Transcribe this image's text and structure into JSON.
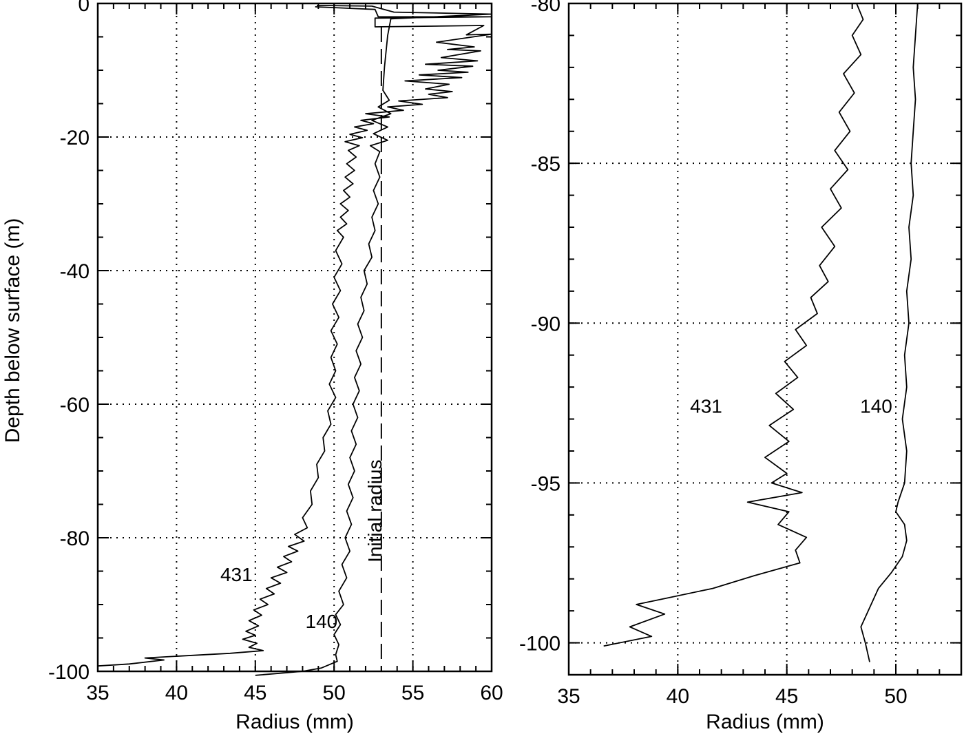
{
  "chart_data": [
    {
      "type": "line",
      "xlabel": "Radius (mm)",
      "ylabel": "Depth below surface (m)",
      "xlim": [
        35,
        60
      ],
      "ylim": [
        -100,
        0
      ],
      "xticks": [
        "35",
        "40",
        "45",
        "50",
        "55",
        "60"
      ],
      "yticks": [
        "0",
        "-20",
        "-40",
        "-60",
        "-80",
        "-100"
      ],
      "grid": true,
      "annotations": [
        {
          "text": "431",
          "x": 43.8,
          "y": -86.5
        },
        {
          "text": "140",
          "x": 49.2,
          "y": -93.5
        },
        {
          "text": "Initial radius",
          "x": 53.0,
          "y": -76.0,
          "rotation": -90
        }
      ],
      "series": [
        {
          "name": "431",
          "points": [
            [
              48.8,
              -0.5
            ],
            [
              52.6,
              -0.9
            ],
            [
              52.8,
              -2.0
            ],
            [
              60.0,
              -2.0
            ],
            [
              52.6,
              -2.2
            ],
            [
              52.6,
              -3.5
            ],
            [
              59.5,
              -3.3
            ],
            [
              58.4,
              -4.7
            ],
            [
              60.0,
              -4.6
            ],
            [
              56.5,
              -5.8
            ],
            [
              58.9,
              -6.5
            ],
            [
              57.2,
              -6.9
            ],
            [
              59.3,
              -7.1
            ],
            [
              56.8,
              -8.1
            ],
            [
              59.1,
              -8.6
            ],
            [
              55.8,
              -9.1
            ],
            [
              58.8,
              -9.4
            ],
            [
              56.6,
              -10.0
            ],
            [
              58.5,
              -10.3
            ],
            [
              55.4,
              -10.7
            ],
            [
              58.1,
              -11.1
            ],
            [
              54.5,
              -11.6
            ],
            [
              57.3,
              -12.1
            ],
            [
              55.8,
              -12.8
            ],
            [
              57.5,
              -13.2
            ],
            [
              56.0,
              -13.6
            ],
            [
              57.2,
              -14.1
            ],
            [
              54.1,
              -14.6
            ],
            [
              55.6,
              -15.1
            ],
            [
              53.4,
              -15.5
            ],
            [
              54.4,
              -16.0
            ],
            [
              52.0,
              -16.5
            ],
            [
              53.5,
              -17.0
            ],
            [
              51.7,
              -17.5
            ],
            [
              52.5,
              -18.0
            ],
            [
              51.3,
              -18.5
            ],
            [
              52.1,
              -19.0
            ],
            [
              51.0,
              -19.6
            ],
            [
              51.8,
              -20.1
            ],
            [
              50.7,
              -20.7
            ],
            [
              51.6,
              -21.3
            ],
            [
              50.9,
              -22.0
            ],
            [
              51.4,
              -23.0
            ],
            [
              50.8,
              -24.0
            ],
            [
              51.3,
              -25.0
            ],
            [
              50.7,
              -26.0
            ],
            [
              51.2,
              -27.0
            ],
            [
              50.6,
              -28.0
            ],
            [
              51.0,
              -29.0
            ],
            [
              50.4,
              -30.0
            ],
            [
              50.9,
              -31.0
            ],
            [
              50.4,
              -32.0
            ],
            [
              50.8,
              -33.0
            ],
            [
              50.2,
              -34.0
            ],
            [
              50.6,
              -35.0
            ],
            [
              50.1,
              -37.0
            ],
            [
              50.5,
              -39.0
            ],
            [
              50.0,
              -41.0
            ],
            [
              50.4,
              -43.0
            ],
            [
              49.9,
              -45.0
            ],
            [
              50.3,
              -47.0
            ],
            [
              49.8,
              -49.0
            ],
            [
              50.2,
              -51.0
            ],
            [
              49.8,
              -53.0
            ],
            [
              50.1,
              -55.0
            ],
            [
              49.7,
              -57.0
            ],
            [
              50.1,
              -59.0
            ],
            [
              49.6,
              -61.0
            ],
            [
              49.8,
              -63.0
            ],
            [
              49.3,
              -65.0
            ],
            [
              49.4,
              -67.0
            ],
            [
              48.9,
              -69.0
            ],
            [
              49.0,
              -71.0
            ],
            [
              48.5,
              -73.0
            ],
            [
              48.6,
              -75.0
            ],
            [
              48.0,
              -77.0
            ],
            [
              48.3,
              -78.5
            ],
            [
              47.5,
              -79.5
            ],
            [
              48.1,
              -80.5
            ],
            [
              47.1,
              -81.3
            ],
            [
              47.7,
              -82.0
            ],
            [
              46.8,
              -82.8
            ],
            [
              47.3,
              -83.6
            ],
            [
              46.4,
              -84.4
            ],
            [
              47.0,
              -85.2
            ],
            [
              46.0,
              -86.0
            ],
            [
              46.6,
              -86.8
            ],
            [
              45.7,
              -87.6
            ],
            [
              46.2,
              -88.4
            ],
            [
              45.3,
              -89.2
            ],
            [
              45.8,
              -90.0
            ],
            [
              44.9,
              -90.8
            ],
            [
              45.4,
              -91.6
            ],
            [
              44.6,
              -92.4
            ],
            [
              45.2,
              -93.2
            ],
            [
              44.4,
              -94.0
            ],
            [
              45.0,
              -94.6
            ],
            [
              44.2,
              -95.2
            ],
            [
              45.1,
              -95.8
            ],
            [
              44.6,
              -96.4
            ],
            [
              45.5,
              -96.9
            ],
            [
              43.4,
              -97.3
            ],
            [
              38.0,
              -98.0
            ],
            [
              39.2,
              -98.3
            ],
            [
              37.0,
              -98.9
            ],
            [
              35.0,
              -99.2
            ]
          ]
        },
        {
          "name": "140",
          "points": [
            [
              48.9,
              -0.3
            ],
            [
              52.4,
              -0.4
            ],
            [
              53.8,
              -1.3
            ],
            [
              60.0,
              -1.6
            ],
            [
              53.6,
              -2.3
            ],
            [
              53.4,
              -4.8
            ],
            [
              53.2,
              -9.5
            ],
            [
              53.1,
              -13.0
            ],
            [
              53.5,
              -14.5
            ],
            [
              52.8,
              -15.5
            ],
            [
              53.6,
              -16.5
            ],
            [
              52.4,
              -17.5
            ],
            [
              53.4,
              -18.5
            ],
            [
              52.5,
              -19.5
            ],
            [
              53.4,
              -20.5
            ],
            [
              52.3,
              -21.3
            ],
            [
              52.9,
              -22.2
            ],
            [
              52.6,
              -24.0
            ],
            [
              52.9,
              -26.0
            ],
            [
              52.5,
              -28.0
            ],
            [
              52.8,
              -30.0
            ],
            [
              52.4,
              -32.0
            ],
            [
              52.6,
              -34.0
            ],
            [
              52.2,
              -36.0
            ],
            [
              52.4,
              -38.0
            ],
            [
              51.9,
              -40.0
            ],
            [
              52.1,
              -42.0
            ],
            [
              51.7,
              -44.0
            ],
            [
              51.9,
              -46.0
            ],
            [
              51.5,
              -48.0
            ],
            [
              51.8,
              -50.0
            ],
            [
              51.4,
              -52.0
            ],
            [
              51.7,
              -54.0
            ],
            [
              51.3,
              -56.0
            ],
            [
              51.6,
              -58.0
            ],
            [
              51.2,
              -60.0
            ],
            [
              51.5,
              -62.0
            ],
            [
              51.1,
              -64.0
            ],
            [
              51.4,
              -66.0
            ],
            [
              51.0,
              -68.0
            ],
            [
              51.3,
              -70.0
            ],
            [
              50.9,
              -72.0
            ],
            [
              51.2,
              -74.0
            ],
            [
              50.8,
              -76.0
            ],
            [
              51.1,
              -78.0
            ],
            [
              50.7,
              -80.0
            ],
            [
              51.0,
              -82.0
            ],
            [
              50.5,
              -84.0
            ],
            [
              50.8,
              -86.0
            ],
            [
              50.3,
              -88.0
            ],
            [
              50.6,
              -90.0
            ],
            [
              50.1,
              -91.5
            ],
            [
              50.4,
              -93.0
            ],
            [
              50.0,
              -94.5
            ],
            [
              50.3,
              -96.0
            ],
            [
              50.1,
              -97.5
            ],
            [
              50.2,
              -98.5
            ],
            [
              49.2,
              -99.5
            ],
            [
              48.0,
              -100.0
            ],
            [
              45.0,
              -100.6
            ]
          ]
        }
      ],
      "reference_lines": [
        {
          "x": 53.0,
          "y_from": -3.5,
          "y_to": -100.0,
          "style": "dashed"
        }
      ]
    },
    {
      "type": "line",
      "xlabel": "Radius (mm)",
      "ylabel": "",
      "xlim": [
        35,
        53
      ],
      "ylim": [
        -101,
        -80
      ],
      "xticks": [
        "35",
        "40",
        "45",
        "50"
      ],
      "yticks": [
        "-80",
        "-85",
        "-90",
        "-95",
        "-100"
      ],
      "grid": true,
      "annotations": [
        {
          "text": "431",
          "x": 41.3,
          "y": -92.8
        },
        {
          "text": "140",
          "x": 49.1,
          "y": -92.8
        }
      ],
      "series": [
        {
          "name": "431",
          "points": [
            [
              48.2,
              -80.0
            ],
            [
              48.5,
              -80.5
            ],
            [
              48.0,
              -81.0
            ],
            [
              48.4,
              -81.6
            ],
            [
              47.6,
              -82.2
            ],
            [
              48.1,
              -82.8
            ],
            [
              47.4,
              -83.4
            ],
            [
              47.9,
              -84.0
            ],
            [
              47.2,
              -84.6
            ],
            [
              47.8,
              -85.2
            ],
            [
              47.0,
              -85.8
            ],
            [
              47.5,
              -86.4
            ],
            [
              46.6,
              -87.0
            ],
            [
              47.2,
              -87.6
            ],
            [
              46.5,
              -88.2
            ],
            [
              46.9,
              -88.7
            ],
            [
              46.1,
              -89.2
            ],
            [
              46.4,
              -89.7
            ],
            [
              45.4,
              -90.2
            ],
            [
              45.9,
              -90.7
            ],
            [
              44.9,
              -91.2
            ],
            [
              45.5,
              -91.7
            ],
            [
              44.5,
              -92.2
            ],
            [
              45.3,
              -92.7
            ],
            [
              44.2,
              -93.2
            ],
            [
              45.1,
              -93.7
            ],
            [
              44.0,
              -94.2
            ],
            [
              45.0,
              -94.7
            ],
            [
              44.3,
              -95.0
            ],
            [
              45.7,
              -95.3
            ],
            [
              43.2,
              -95.6
            ],
            [
              45.1,
              -95.9
            ],
            [
              44.6,
              -96.3
            ],
            [
              45.9,
              -96.7
            ],
            [
              45.4,
              -97.1
            ],
            [
              45.6,
              -97.5
            ],
            [
              43.5,
              -97.9
            ],
            [
              41.6,
              -98.3
            ],
            [
              39.5,
              -98.6
            ],
            [
              38.1,
              -98.8
            ],
            [
              39.4,
              -99.1
            ],
            [
              37.8,
              -99.5
            ],
            [
              38.8,
              -99.8
            ],
            [
              36.6,
              -100.1
            ]
          ]
        },
        {
          "name": "140",
          "points": [
            [
              51.0,
              -80.0
            ],
            [
              50.9,
              -81.0
            ],
            [
              50.8,
              -82.0
            ],
            [
              50.9,
              -83.0
            ],
            [
              50.8,
              -84.0
            ],
            [
              50.7,
              -85.0
            ],
            [
              50.8,
              -86.0
            ],
            [
              50.6,
              -87.0
            ],
            [
              50.7,
              -88.0
            ],
            [
              50.5,
              -89.0
            ],
            [
              50.6,
              -90.0
            ],
            [
              50.4,
              -91.0
            ],
            [
              50.5,
              -92.0
            ],
            [
              50.3,
              -93.0
            ],
            [
              50.5,
              -94.0
            ],
            [
              50.4,
              -95.0
            ],
            [
              50.1,
              -95.6
            ],
            [
              50.0,
              -95.9
            ],
            [
              50.4,
              -96.3
            ],
            [
              50.5,
              -96.8
            ],
            [
              50.3,
              -97.3
            ],
            [
              49.8,
              -97.8
            ],
            [
              49.2,
              -98.3
            ],
            [
              48.8,
              -98.9
            ],
            [
              48.4,
              -99.5
            ],
            [
              48.6,
              -100.0
            ],
            [
              48.8,
              -100.6
            ]
          ]
        }
      ]
    }
  ]
}
